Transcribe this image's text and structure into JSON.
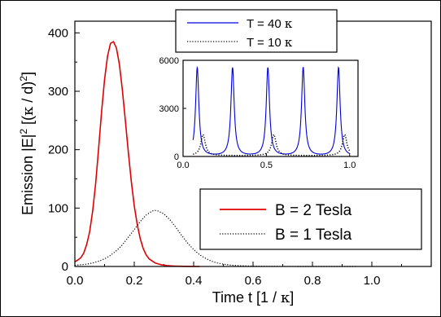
{
  "chart_data": [
    {
      "type": "line",
      "role": "main",
      "xlabel_prefix": "Time t [1 / ",
      "xlabel_symbol": "κ",
      "xlabel_suffix": "]",
      "ylabel_prefix": "Emission |E|",
      "ylabel_sup1": "2",
      "ylabel_mid": " [(",
      "ylabel_symbol": "κ",
      "ylabel_mid2": " / d)",
      "ylabel_sup2": "2",
      "ylabel_suffix": "]",
      "xlim": [
        0.0,
        1.2
      ],
      "ylim": [
        0,
        420
      ],
      "x_ticks": [
        0.0,
        0.2,
        0.4,
        0.6,
        0.8,
        1.0
      ],
      "x_tick_labels": [
        "0.0",
        "0.2",
        "0.4",
        "0.6",
        "0.8",
        "1.0"
      ],
      "y_ticks": [
        0,
        100,
        200,
        300,
        400
      ],
      "y_tick_labels": [
        "0",
        "100",
        "200",
        "300",
        "400"
      ],
      "grid": false,
      "legend_position": "bottom-right",
      "series": [
        {
          "name": "B = 2 Tesla",
          "color": "#e00000",
          "style": "solid",
          "x": [
            0.0,
            0.01,
            0.02,
            0.03,
            0.04,
            0.05,
            0.06,
            0.07,
            0.08,
            0.09,
            0.1,
            0.11,
            0.12,
            0.13,
            0.14,
            0.15,
            0.16,
            0.17,
            0.18,
            0.19,
            0.2,
            0.21,
            0.22,
            0.23,
            0.24,
            0.25,
            0.27,
            0.29,
            0.31,
            0.33,
            0.35,
            0.38,
            0.42
          ],
          "y": [
            8,
            11,
            15,
            23,
            38,
            60,
            95,
            142,
            202,
            265,
            320,
            360,
            382,
            385,
            374,
            346,
            302,
            250,
            196,
            146,
            104,
            72,
            48,
            31,
            20,
            13,
            6,
            3,
            1.5,
            0.8,
            0.4,
            0.1,
            0
          ]
        },
        {
          "name": "B = 1 Tesla",
          "color": "#000000",
          "style": "dotted",
          "x": [
            0.0,
            0.02,
            0.04,
            0.06,
            0.08,
            0.1,
            0.12,
            0.14,
            0.16,
            0.18,
            0.2,
            0.22,
            0.24,
            0.26,
            0.27,
            0.28,
            0.3,
            0.32,
            0.34,
            0.36,
            0.38,
            0.4,
            0.42,
            0.44,
            0.46,
            0.48,
            0.5,
            0.53,
            0.56,
            0.6,
            0.65,
            0.7,
            0.8,
            0.95
          ],
          "y": [
            2,
            3,
            4,
            6,
            9,
            13,
            19,
            27,
            37,
            50,
            63,
            77,
            88,
            95,
            96,
            95,
            90,
            80,
            67,
            53,
            40,
            29,
            20,
            14,
            9,
            6,
            4,
            2,
            1.2,
            0.6,
            0.2,
            0.1,
            0,
            0
          ]
        }
      ]
    },
    {
      "type": "line",
      "role": "inset",
      "xlim": [
        0.0,
        1.05
      ],
      "ylim": [
        0,
        6000
      ],
      "x_ticks": [
        0.0,
        0.5,
        1.0
      ],
      "x_tick_labels": [
        "0.0",
        "0.5",
        "1.0"
      ],
      "y_ticks": [
        0,
        3000,
        6000
      ],
      "y_tick_labels": [
        "0",
        "3000",
        "6000"
      ],
      "grid": false,
      "legend_position": "top",
      "series": [
        {
          "name_prefix": "T = 40 ",
          "name_symbol": "κ",
          "color": "#0000dd",
          "style": "solid",
          "peaks_x": [
            0.085,
            0.297,
            0.509,
            0.721,
            0.933
          ],
          "peak_height": 5550,
          "peak_width": 0.022
        },
        {
          "name_prefix": "T = 10 ",
          "name_symbol": "κ",
          "color": "#000000",
          "style": "dotted",
          "peaks_x": [
            0.12,
            0.545,
            0.97
          ],
          "peak_height": 1380,
          "peak_width": 0.03
        }
      ]
    }
  ]
}
